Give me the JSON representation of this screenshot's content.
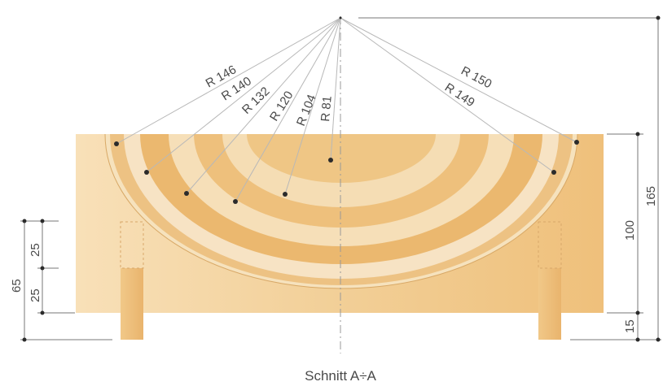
{
  "caption": "Schnitt A÷A",
  "radii": [
    {
      "label": "R 146"
    },
    {
      "label": "R 140"
    },
    {
      "label": "R 132"
    },
    {
      "label": "R 120"
    },
    {
      "label": "R 104"
    },
    {
      "label": "R 81"
    },
    {
      "label": "R 150"
    },
    {
      "label": "R 149"
    }
  ],
  "dimensions": {
    "left_total": "65",
    "left_upper": "25",
    "left_lower": "25",
    "right_total": "165",
    "right_block": "100",
    "right_foot": "15"
  },
  "colors": {
    "block_light": "#f6dcb0",
    "block_mid": "#efc98c",
    "ring_dark": "#e7b36a",
    "ring_light": "#f7e4c3",
    "line": "#777777",
    "ray": "#b8b8b8",
    "text": "#4a4a4a"
  }
}
